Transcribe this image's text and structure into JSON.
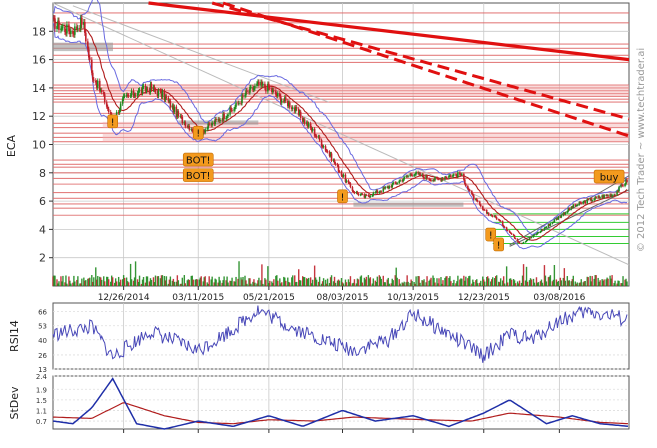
{
  "watermark": "© 2012 Tech Trader ~ www.techtrader.ai",
  "colors": {
    "price_up": "#1f8a1f",
    "price_down": "#c0202a",
    "band": "#6a6ae0",
    "ma": "#b01c1c",
    "trend": "#e01010",
    "support_green": "#33cc33",
    "grid": "#c8c8c8",
    "signal_bg": "#f39a1e",
    "rsi_line": "#4848b8",
    "stdev_blue": "#1f2fa8",
    "stdev_red": "#b01c1c"
  },
  "chart_data": [
    {
      "type": "line",
      "title": "",
      "ylabel": "ECA",
      "ylim": [
        0,
        20
      ],
      "yticks": [
        2,
        4,
        6,
        8,
        10,
        12,
        14,
        16,
        18
      ],
      "x_tick_labels": [
        "12/26/2014",
        "03/11/2015",
        "05/21/2015",
        "08/03/2015",
        "10/13/2015",
        "12/23/2015",
        "03/08/2016"
      ],
      "date_range": [
        "2014-10-16",
        "2016-05-17"
      ],
      "series": [
        {
          "x": [
            "2014-10-16",
            "2014-10-27",
            "2014-11-05",
            "2014-11-15",
            "2014-11-24",
            "2014-12-05",
            "2014-12-15",
            "2014-12-26",
            "2015-01-08",
            "2015-01-22",
            "2015-02-05",
            "2015-02-19",
            "2015-02-28",
            "2015-03-11",
            "2015-03-20",
            "2015-04-01",
            "2015-04-15",
            "2015-04-28",
            "2015-05-10",
            "2015-05-21",
            "2015-06-01",
            "2015-06-12",
            "2015-06-24",
            "2015-07-06",
            "2015-07-20",
            "2015-08-03",
            "2015-08-14",
            "2015-08-25",
            "2015-09-05",
            "2015-09-18",
            "2015-10-01",
            "2015-10-13",
            "2015-10-25",
            "2015-11-05",
            "2015-11-18",
            "2015-11-30",
            "2015-12-11",
            "2015-12-23",
            "2016-01-05",
            "2016-01-18",
            "2016-01-29",
            "2016-02-10",
            "2016-02-24",
            "2016-03-08",
            "2016-03-21",
            "2016-04-04",
            "2016-04-18",
            "2016-05-02",
            "2016-05-17"
          ],
          "values": [
            18.6,
            18.2,
            18.0,
            18.8,
            15.0,
            13.5,
            11.6,
            13.2,
            13.7,
            14.0,
            13.4,
            12.0,
            11.4,
            10.8,
            11.2,
            11.8,
            12.5,
            13.6,
            14.2,
            14.0,
            13.3,
            12.8,
            11.8,
            10.8,
            9.4,
            7.8,
            6.7,
            6.3,
            6.6,
            7.0,
            7.5,
            8.0,
            7.7,
            7.5,
            7.8,
            7.9,
            6.4,
            5.3,
            4.8,
            3.8,
            3.0,
            3.5,
            4.2,
            4.9,
            5.6,
            6.0,
            6.3,
            6.5,
            7.6
          ]
        }
      ],
      "signals": [
        {
          "label": "!",
          "date": "2014-12-15",
          "price": 11.6
        },
        {
          "label": "!",
          "date": "2015-03-11",
          "price": 10.8
        },
        {
          "label": "BOT!",
          "date": "2015-03-11",
          "price": 8.9
        },
        {
          "label": "BOT!",
          "date": "2015-03-11",
          "price": 7.8
        },
        {
          "label": "!",
          "date": "2015-08-03",
          "price": 6.3
        },
        {
          "label": "!",
          "date": "2015-12-30",
          "price": 3.6
        },
        {
          "label": "!",
          "date": "2016-01-07",
          "price": 2.9
        },
        {
          "label": "buy",
          "date": "2016-04-27",
          "price": 7.7
        }
      ],
      "resistance_levels": [
        19.3,
        18.6,
        17.1,
        16.8,
        16.3,
        15.8,
        14.2,
        14.0,
        13.8,
        13.6,
        13.4,
        13.2,
        13.0,
        12.2,
        11.5,
        11.2,
        10.8,
        10.5,
        10.2,
        8.9,
        8.6,
        8.4,
        8.0,
        7.6,
        7.2,
        6.6,
        6.2,
        5.8,
        5.5,
        5.0
      ],
      "support_levels": [
        5.1,
        4.5,
        4.0,
        3.5,
        3.0
      ]
    },
    {
      "type": "line",
      "title": "",
      "ylabel": "RSI14",
      "ylim": [
        13,
        74
      ],
      "yticks": [
        13,
        26,
        40,
        53,
        66
      ],
      "series": [
        {
          "x": [
            "2014-10-16",
            "2014-11-24",
            "2014-12-15",
            "2015-01-22",
            "2015-03-11",
            "2015-04-15",
            "2015-05-10",
            "2015-06-12",
            "2015-07-20",
            "2015-08-14",
            "2015-09-18",
            "2015-10-13",
            "2015-11-18",
            "2015-12-23",
            "2016-01-18",
            "2016-02-10",
            "2016-03-08",
            "2016-04-04",
            "2016-05-02",
            "2016-05-17"
          ],
          "values": [
            45,
            52,
            24,
            48,
            30,
            50,
            68,
            52,
            38,
            30,
            40,
            64,
            45,
            25,
            45,
            40,
            58,
            66,
            62,
            57
          ]
        }
      ]
    },
    {
      "type": "line",
      "title": "",
      "ylabel": "StDev",
      "ylim": [
        0.4,
        2.4
      ],
      "yticks": [
        0.7,
        1.1,
        1.5,
        1.9,
        2.4
      ],
      "series": [
        {
          "x": [
            "2014-10-16",
            "2014-11-05",
            "2014-11-24",
            "2014-12-15",
            "2015-01-08",
            "2015-02-05",
            "2015-03-11",
            "2015-04-15",
            "2015-05-21",
            "2015-06-24",
            "2015-08-03",
            "2015-09-05",
            "2015-10-13",
            "2015-11-18",
            "2015-12-23",
            "2016-01-18",
            "2016-02-24",
            "2016-03-21",
            "2016-04-18",
            "2016-05-17"
          ],
          "values": [
            0.7,
            0.6,
            1.2,
            2.3,
            0.6,
            0.4,
            0.7,
            0.5,
            0.9,
            0.5,
            1.1,
            0.7,
            0.9,
            0.5,
            1.0,
            1.5,
            0.6,
            0.9,
            0.6,
            0.5
          ]
        },
        {
          "x": [
            "2014-10-16",
            "2014-11-24",
            "2014-12-26",
            "2015-02-05",
            "2015-03-11",
            "2015-04-15",
            "2015-05-21",
            "2015-07-06",
            "2015-08-14",
            "2015-09-18",
            "2015-10-25",
            "2015-12-11",
            "2016-01-18",
            "2016-03-08",
            "2016-04-18",
            "2016-05-17"
          ],
          "values": [
            0.85,
            0.8,
            1.4,
            0.9,
            0.65,
            0.6,
            0.75,
            0.7,
            0.85,
            0.8,
            0.75,
            0.7,
            1.0,
            0.85,
            0.65,
            0.6
          ]
        }
      ]
    }
  ]
}
